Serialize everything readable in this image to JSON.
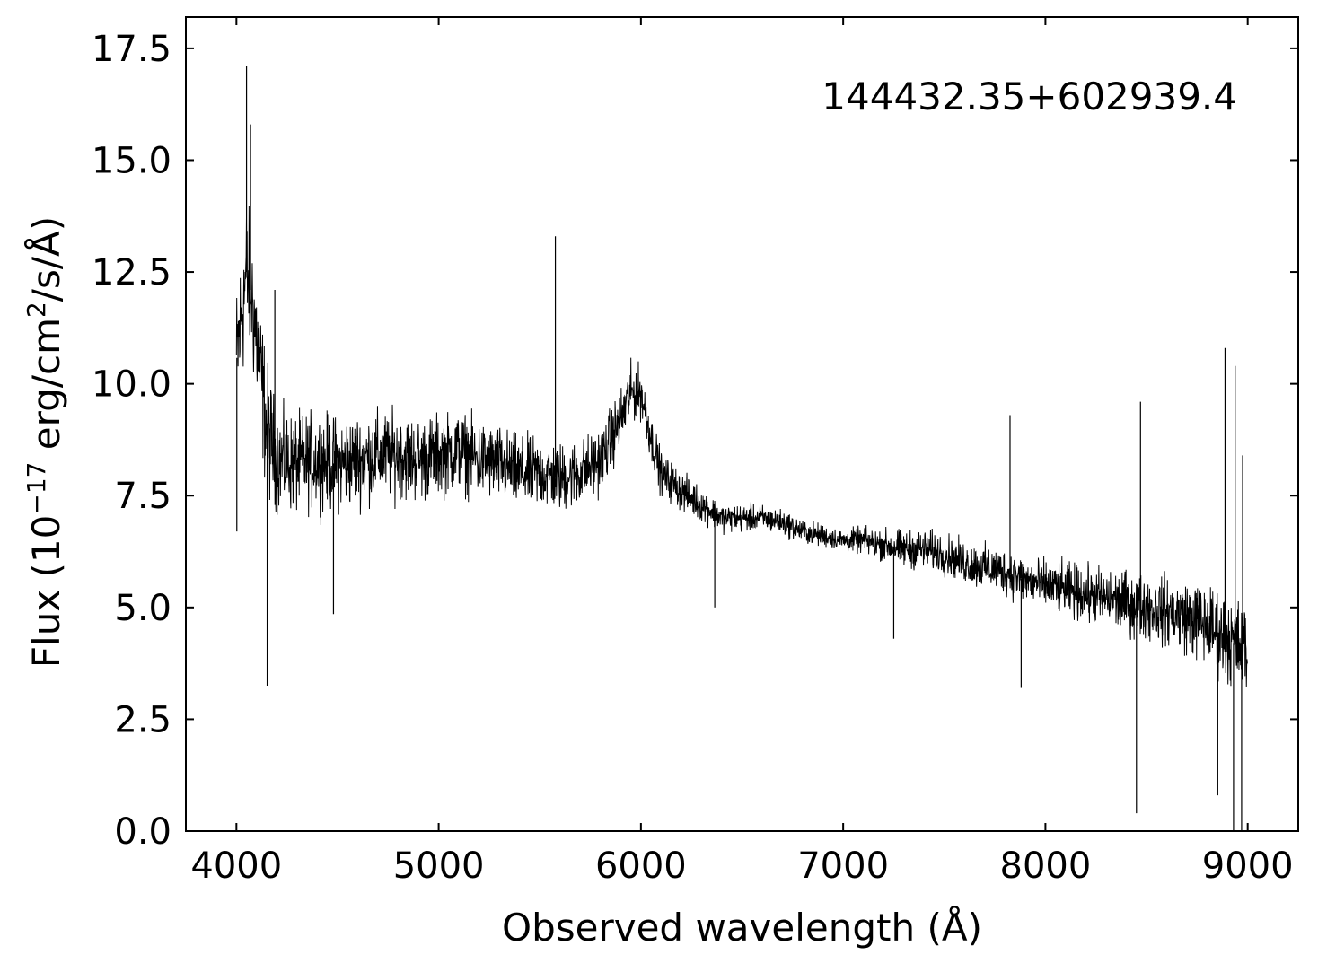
{
  "chart_data": {
    "type": "line",
    "annotation": "144432.35+602939.4",
    "xlabel": "Observed wavelength (Å)",
    "ylabel": {
      "prefix": "Flux (10",
      "exponent": "−17",
      "middle": " erg/cm",
      "squared": "2",
      "suffix": "/s/Å)"
    },
    "xlim": [
      3750,
      9250
    ],
    "ylim": [
      0,
      18.2
    ],
    "x_ticks": [
      4000,
      5000,
      6000,
      7000,
      8000,
      9000
    ],
    "x_tick_labels": [
      "4000",
      "5000",
      "6000",
      "7000",
      "8000",
      "9000"
    ],
    "y_ticks": [
      0,
      2.5,
      5,
      7.5,
      10,
      12.5,
      15,
      17.5
    ],
    "y_tick_labels": [
      "0.0",
      "2.5",
      "5.0",
      "7.5",
      "10.0",
      "12.5",
      "15.0",
      "17.5"
    ],
    "grid": false,
    "line_color": "#000000",
    "series": [
      {
        "x": [
          4000,
          4025,
          4050,
          4075,
          4100,
          4150,
          4200,
          4300,
          4400,
          4500,
          4600,
          4700,
          4800,
          4900,
          5000,
          5100,
          5200,
          5300,
          5400,
          5500,
          5600,
          5700,
          5800,
          5900,
          5950,
          6000,
          6050,
          6100,
          6200,
          6300,
          6400,
          6500,
          6600,
          6700,
          6800,
          6900,
          7000,
          7100,
          7200,
          7300,
          7400,
          7500,
          7600,
          7700,
          7800,
          7900,
          8000,
          8100,
          8200,
          8300,
          8400,
          8500,
          8600,
          8700,
          8800,
          8900,
          9000
        ],
        "y": [
          10.5,
          11.5,
          12.5,
          12.0,
          11.0,
          9.0,
          8.3,
          8.2,
          8.3,
          8.2,
          8.3,
          8.4,
          8.4,
          8.3,
          8.4,
          8.5,
          8.3,
          8.2,
          8.0,
          8.0,
          7.9,
          8.0,
          8.3,
          9.2,
          9.8,
          9.8,
          8.8,
          8.0,
          7.6,
          7.3,
          7.0,
          7.0,
          7.0,
          6.9,
          6.7,
          6.6,
          6.5,
          6.5,
          6.4,
          6.3,
          6.3,
          6.2,
          6.0,
          5.9,
          5.8,
          5.6,
          5.5,
          5.4,
          5.3,
          5.2,
          5.1,
          5.0,
          4.9,
          4.8,
          4.6,
          4.3,
          4.0
        ]
      }
    ],
    "spikes": [
      {
        "x": 4050,
        "y": 17.1
      },
      {
        "x": 4070,
        "y": 15.8
      },
      {
        "x": 4002,
        "y": 6.7
      },
      {
        "x": 4152,
        "y": 3.25
      },
      {
        "x": 4190,
        "y": 12.1
      },
      {
        "x": 4480,
        "y": 4.85
      },
      {
        "x": 5577,
        "y": 13.3
      },
      {
        "x": 6365,
        "y": 5.0
      },
      {
        "x": 7250,
        "y": 4.3
      },
      {
        "x": 7825,
        "y": 9.3
      },
      {
        "x": 7880,
        "y": 3.2
      },
      {
        "x": 8450,
        "y": 0.4
      },
      {
        "x": 8470,
        "y": 9.6
      },
      {
        "x": 8852,
        "y": 0.8
      },
      {
        "x": 8888,
        "y": 10.8
      },
      {
        "x": 8930,
        "y": 0.0
      },
      {
        "x": 8938,
        "y": 10.4
      },
      {
        "x": 8970,
        "y": 0.0
      },
      {
        "x": 8975,
        "y": 8.4
      }
    ],
    "noise_profile": [
      {
        "x": 4000,
        "amp": 2.4
      },
      {
        "x": 4150,
        "amp": 2.2
      },
      {
        "x": 4200,
        "amp": 1.6
      },
      {
        "x": 5000,
        "amp": 1.3
      },
      {
        "x": 5900,
        "amp": 1.0
      },
      {
        "x": 6100,
        "amp": 0.7
      },
      {
        "x": 6400,
        "amp": 0.45
      },
      {
        "x": 7000,
        "amp": 0.35
      },
      {
        "x": 7300,
        "amp": 0.6
      },
      {
        "x": 8000,
        "amp": 0.8
      },
      {
        "x": 8600,
        "amp": 1.1
      },
      {
        "x": 9000,
        "amp": 1.5
      }
    ]
  }
}
